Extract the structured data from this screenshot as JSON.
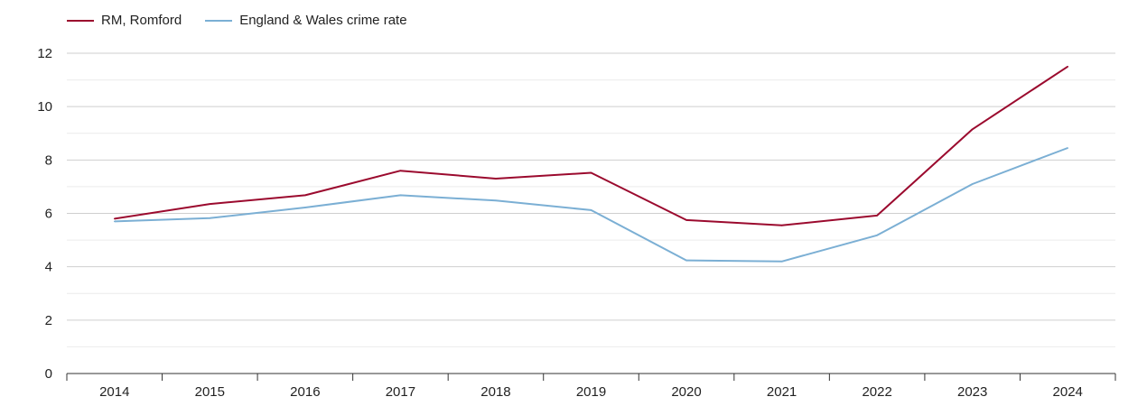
{
  "legend": [
    {
      "label": "RM, Romford",
      "color": "#9b0a2e"
    },
    {
      "label": "England & Wales crime rate",
      "color": "#7bafd4"
    }
  ],
  "chart_data": {
    "type": "line",
    "x": [
      "2014",
      "2015",
      "2016",
      "2017",
      "2018",
      "2019",
      "2020",
      "2021",
      "2022",
      "2023",
      "2024"
    ],
    "series": [
      {
        "name": "RM, Romford",
        "color": "#9b0a2e",
        "values": [
          5.8,
          6.35,
          6.68,
          7.6,
          7.3,
          7.52,
          5.75,
          5.55,
          5.92,
          9.15,
          11.5
        ]
      },
      {
        "name": "England & Wales crime rate",
        "color": "#7bafd4",
        "values": [
          5.7,
          5.82,
          6.22,
          6.68,
          6.48,
          6.12,
          4.24,
          4.2,
          5.18,
          7.1,
          8.45
        ]
      }
    ],
    "yticks": [
      0,
      2,
      4,
      6,
      8,
      10,
      12
    ],
    "ylim": [
      0,
      12
    ],
    "grid": true,
    "legend_position": "top-left",
    "title": "",
    "xlabel": "",
    "ylabel": ""
  }
}
